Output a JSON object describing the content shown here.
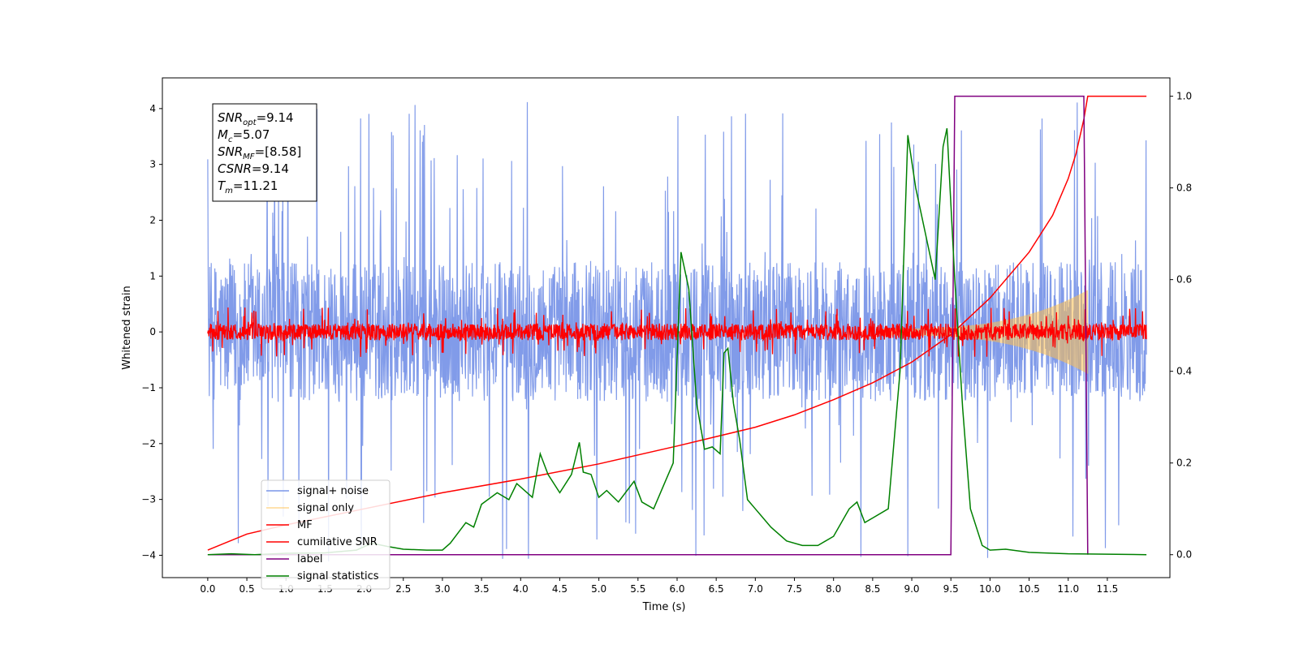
{
  "chart_data": {
    "type": "line",
    "xlabel": "Time (s)",
    "ylabel_left": "Whitened strain",
    "ylabel_right": "",
    "xlim": [
      -0.58,
      12.3
    ],
    "ylim_left": [
      -4.4,
      4.55
    ],
    "ylim_right": [
      -0.05,
      1.04
    ],
    "x_ticks": [
      0.0,
      0.5,
      1.0,
      1.5,
      2.0,
      2.5,
      3.0,
      3.5,
      4.0,
      4.5,
      5.0,
      5.5,
      6.0,
      6.5,
      7.0,
      7.5,
      8.0,
      8.5,
      9.0,
      9.5,
      10.0,
      10.5,
      11.0,
      11.5
    ],
    "x_tick_labels": [
      "0.0",
      "0.5",
      "1.0",
      "1.5",
      "2.0",
      "2.5",
      "3.0",
      "3.5",
      "4.0",
      "4.5",
      "5.0",
      "5.5",
      "6.0",
      "6.5",
      "7.0",
      "7.5",
      "8.0",
      "8.5",
      "9.0",
      "9.5",
      "10.0",
      "10.5",
      "11.0",
      "11.5"
    ],
    "y_left_ticks": [
      -4,
      -3,
      -2,
      -1,
      0,
      1,
      2,
      3,
      4
    ],
    "y_left_tick_labels": [
      "−4",
      "−3",
      "−2",
      "−1",
      "0",
      "1",
      "2",
      "3",
      "4"
    ],
    "y_right_ticks": [
      0.0,
      0.2,
      0.4,
      0.6,
      0.8,
      1.0
    ],
    "y_right_tick_labels": [
      "0.0",
      "0.2",
      "0.4",
      "0.6",
      "0.8",
      "1.0"
    ],
    "annotation": [
      {
        "base": "SNR",
        "sub": "opt",
        "value": "=9.14"
      },
      {
        "base": "M",
        "sub": "c",
        "value": "=5.07"
      },
      {
        "base": "SNR",
        "sub": "MF",
        "value": "=[8.58]"
      },
      {
        "base": "CSNR",
        "sub": "",
        "value": "=9.14"
      },
      {
        "base": "T",
        "sub": "m",
        "value": "=11.21"
      }
    ],
    "legend_position": "lower-left",
    "series": [
      {
        "name": "signal+ noise",
        "axis": "left",
        "color": "#7a96e8",
        "style": "noise",
        "x_range": [
          0.0,
          12.0
        ],
        "band_left": [
          -1.25,
          1.25
        ],
        "spike_max": 4.15
      },
      {
        "name": "signal only",
        "axis": "left",
        "color": "#ffc04d",
        "style": "chirp",
        "x_range": [
          8.6,
          11.25
        ],
        "amplitude_start": 0.06,
        "amplitude_end": 0.75
      },
      {
        "name": "MF",
        "axis": "left",
        "color": "#ff0000",
        "style": "noise",
        "x_range": [
          0.0,
          12.0
        ],
        "band_left": [
          -0.15,
          0.15
        ],
        "spike_max": 0.45
      },
      {
        "name": "cumilative SNR",
        "axis": "right",
        "color": "#ff0000",
        "style": "line",
        "points": [
          [
            0.0,
            0.01
          ],
          [
            0.5,
            0.045
          ],
          [
            1.0,
            0.065
          ],
          [
            2.0,
            0.1
          ],
          [
            3.0,
            0.135
          ],
          [
            4.0,
            0.165
          ],
          [
            5.0,
            0.198
          ],
          [
            6.0,
            0.237
          ],
          [
            7.0,
            0.278
          ],
          [
            7.5,
            0.305
          ],
          [
            8.0,
            0.338
          ],
          [
            8.5,
            0.375
          ],
          [
            9.0,
            0.42
          ],
          [
            9.5,
            0.48
          ],
          [
            10.0,
            0.56
          ],
          [
            10.5,
            0.66
          ],
          [
            10.8,
            0.74
          ],
          [
            11.0,
            0.82
          ],
          [
            11.1,
            0.875
          ],
          [
            11.2,
            0.95
          ],
          [
            11.25,
            1.0
          ],
          [
            12.0,
            1.0
          ]
        ]
      },
      {
        "name": "label",
        "axis": "right",
        "color": "#800080",
        "style": "line",
        "points": [
          [
            0.0,
            0.0
          ],
          [
            9.5,
            0.0
          ],
          [
            9.55,
            1.0
          ],
          [
            11.2,
            1.0
          ],
          [
            11.25,
            0.0
          ]
        ]
      },
      {
        "name": "signal statistics",
        "axis": "right",
        "color": "#008000",
        "style": "line",
        "points": [
          [
            0.0,
            0.0
          ],
          [
            0.3,
            0.002
          ],
          [
            0.6,
            0.0
          ],
          [
            1.0,
            0.003
          ],
          [
            1.5,
            0.004
          ],
          [
            1.9,
            0.01
          ],
          [
            2.1,
            0.025
          ],
          [
            2.3,
            0.018
          ],
          [
            2.5,
            0.012
          ],
          [
            2.8,
            0.01
          ],
          [
            3.0,
            0.01
          ],
          [
            3.1,
            0.025
          ],
          [
            3.3,
            0.07
          ],
          [
            3.4,
            0.06
          ],
          [
            3.5,
            0.11
          ],
          [
            3.7,
            0.135
          ],
          [
            3.85,
            0.12
          ],
          [
            3.95,
            0.155
          ],
          [
            4.05,
            0.14
          ],
          [
            4.15,
            0.125
          ],
          [
            4.25,
            0.22
          ],
          [
            4.35,
            0.175
          ],
          [
            4.5,
            0.135
          ],
          [
            4.65,
            0.175
          ],
          [
            4.75,
            0.245
          ],
          [
            4.8,
            0.18
          ],
          [
            4.9,
            0.175
          ],
          [
            5.0,
            0.125
          ],
          [
            5.1,
            0.14
          ],
          [
            5.25,
            0.115
          ],
          [
            5.45,
            0.16
          ],
          [
            5.55,
            0.115
          ],
          [
            5.7,
            0.1
          ],
          [
            5.85,
            0.16
          ],
          [
            5.95,
            0.2
          ],
          [
            6.05,
            0.66
          ],
          [
            6.15,
            0.58
          ],
          [
            6.25,
            0.33
          ],
          [
            6.35,
            0.23
          ],
          [
            6.45,
            0.235
          ],
          [
            6.55,
            0.22
          ],
          [
            6.6,
            0.44
          ],
          [
            6.65,
            0.45
          ],
          [
            6.72,
            0.33
          ],
          [
            6.8,
            0.25
          ],
          [
            6.9,
            0.12
          ],
          [
            7.0,
            0.1
          ],
          [
            7.2,
            0.06
          ],
          [
            7.4,
            0.03
          ],
          [
            7.6,
            0.02
          ],
          [
            7.8,
            0.02
          ],
          [
            8.0,
            0.04
          ],
          [
            8.2,
            0.1
          ],
          [
            8.3,
            0.115
          ],
          [
            8.4,
            0.07
          ],
          [
            8.5,
            0.08
          ],
          [
            8.7,
            0.1
          ],
          [
            8.85,
            0.4
          ],
          [
            8.95,
            0.915
          ],
          [
            9.05,
            0.8
          ],
          [
            9.2,
            0.68
          ],
          [
            9.3,
            0.6
          ],
          [
            9.4,
            0.89
          ],
          [
            9.45,
            0.93
          ],
          [
            9.55,
            0.6
          ],
          [
            9.65,
            0.32
          ],
          [
            9.75,
            0.1
          ],
          [
            9.9,
            0.02
          ],
          [
            10.0,
            0.01
          ],
          [
            10.2,
            0.012
          ],
          [
            10.5,
            0.005
          ],
          [
            11.0,
            0.002
          ],
          [
            12.0,
            0.0
          ]
        ]
      }
    ]
  }
}
